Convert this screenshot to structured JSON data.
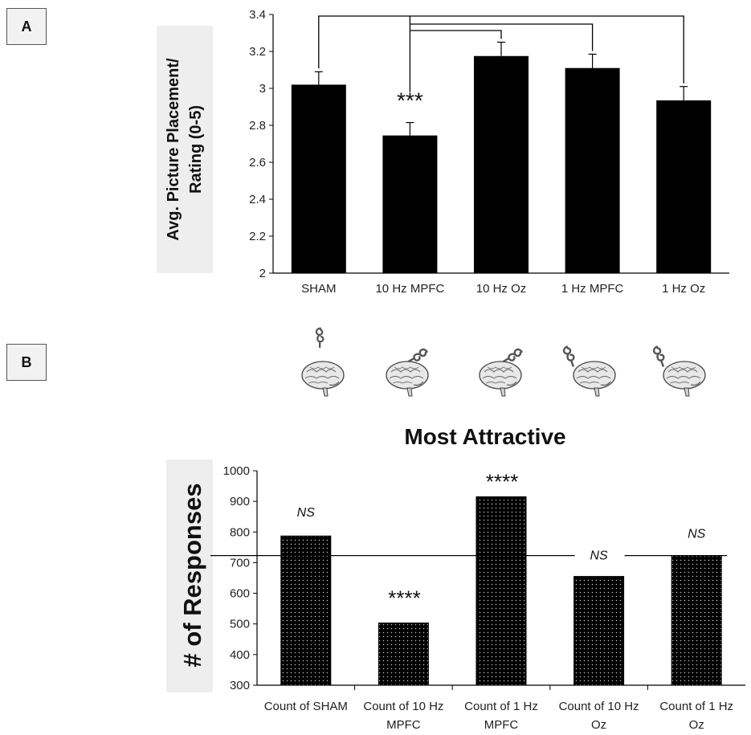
{
  "panels": {
    "a_label": "A",
    "b_label": "B"
  },
  "chart_data": [
    {
      "type": "bar",
      "panel": "A",
      "title": "",
      "ylabel_line1": "Avg. Picture Placement/",
      "ylabel_line2": "Rating (0-5)",
      "xlabel": "",
      "ylim": [
        2,
        3.4
      ],
      "yticks": [
        "2",
        "2.2",
        "2.4",
        "2.6",
        "2.8",
        "3",
        "3.2",
        "3.4"
      ],
      "categories": [
        "SHAM",
        "10 Hz MPFC",
        "10 Hz Oz",
        "1 Hz MPFC",
        "1 Hz Oz"
      ],
      "values": [
        3.02,
        2.745,
        3.175,
        3.11,
        2.935
      ],
      "errors": [
        0.07,
        0.07,
        0.075,
        0.075,
        0.075
      ],
      "annotations": [
        "",
        "***",
        "",
        "",
        ""
      ],
      "comparisons": "10 Hz MPFC vs each other condition",
      "bar_color": "#000000"
    },
    {
      "type": "bar",
      "panel": "B",
      "title": "Most Attractive",
      "ylabel": "# of Responses",
      "xlabel": "",
      "ylim": [
        300,
        1000
      ],
      "yticks": [
        "300",
        "400",
        "500",
        "600",
        "700",
        "800",
        "900",
        "1000"
      ],
      "categories": [
        [
          "Count of SHAM",
          ""
        ],
        [
          "Count of 10 Hz",
          "MPFC"
        ],
        [
          "Count of 1 Hz",
          "MPFC"
        ],
        [
          "Count of 10 Hz",
          "Oz"
        ],
        [
          "Count of 1 Hz",
          "Oz"
        ]
      ],
      "values": [
        787,
        503,
        915,
        655,
        723
      ],
      "reference_line": 723,
      "annotations": [
        "NS",
        "****",
        "****",
        "NS",
        "NS"
      ],
      "bar_pattern": "dotted black"
    }
  ]
}
